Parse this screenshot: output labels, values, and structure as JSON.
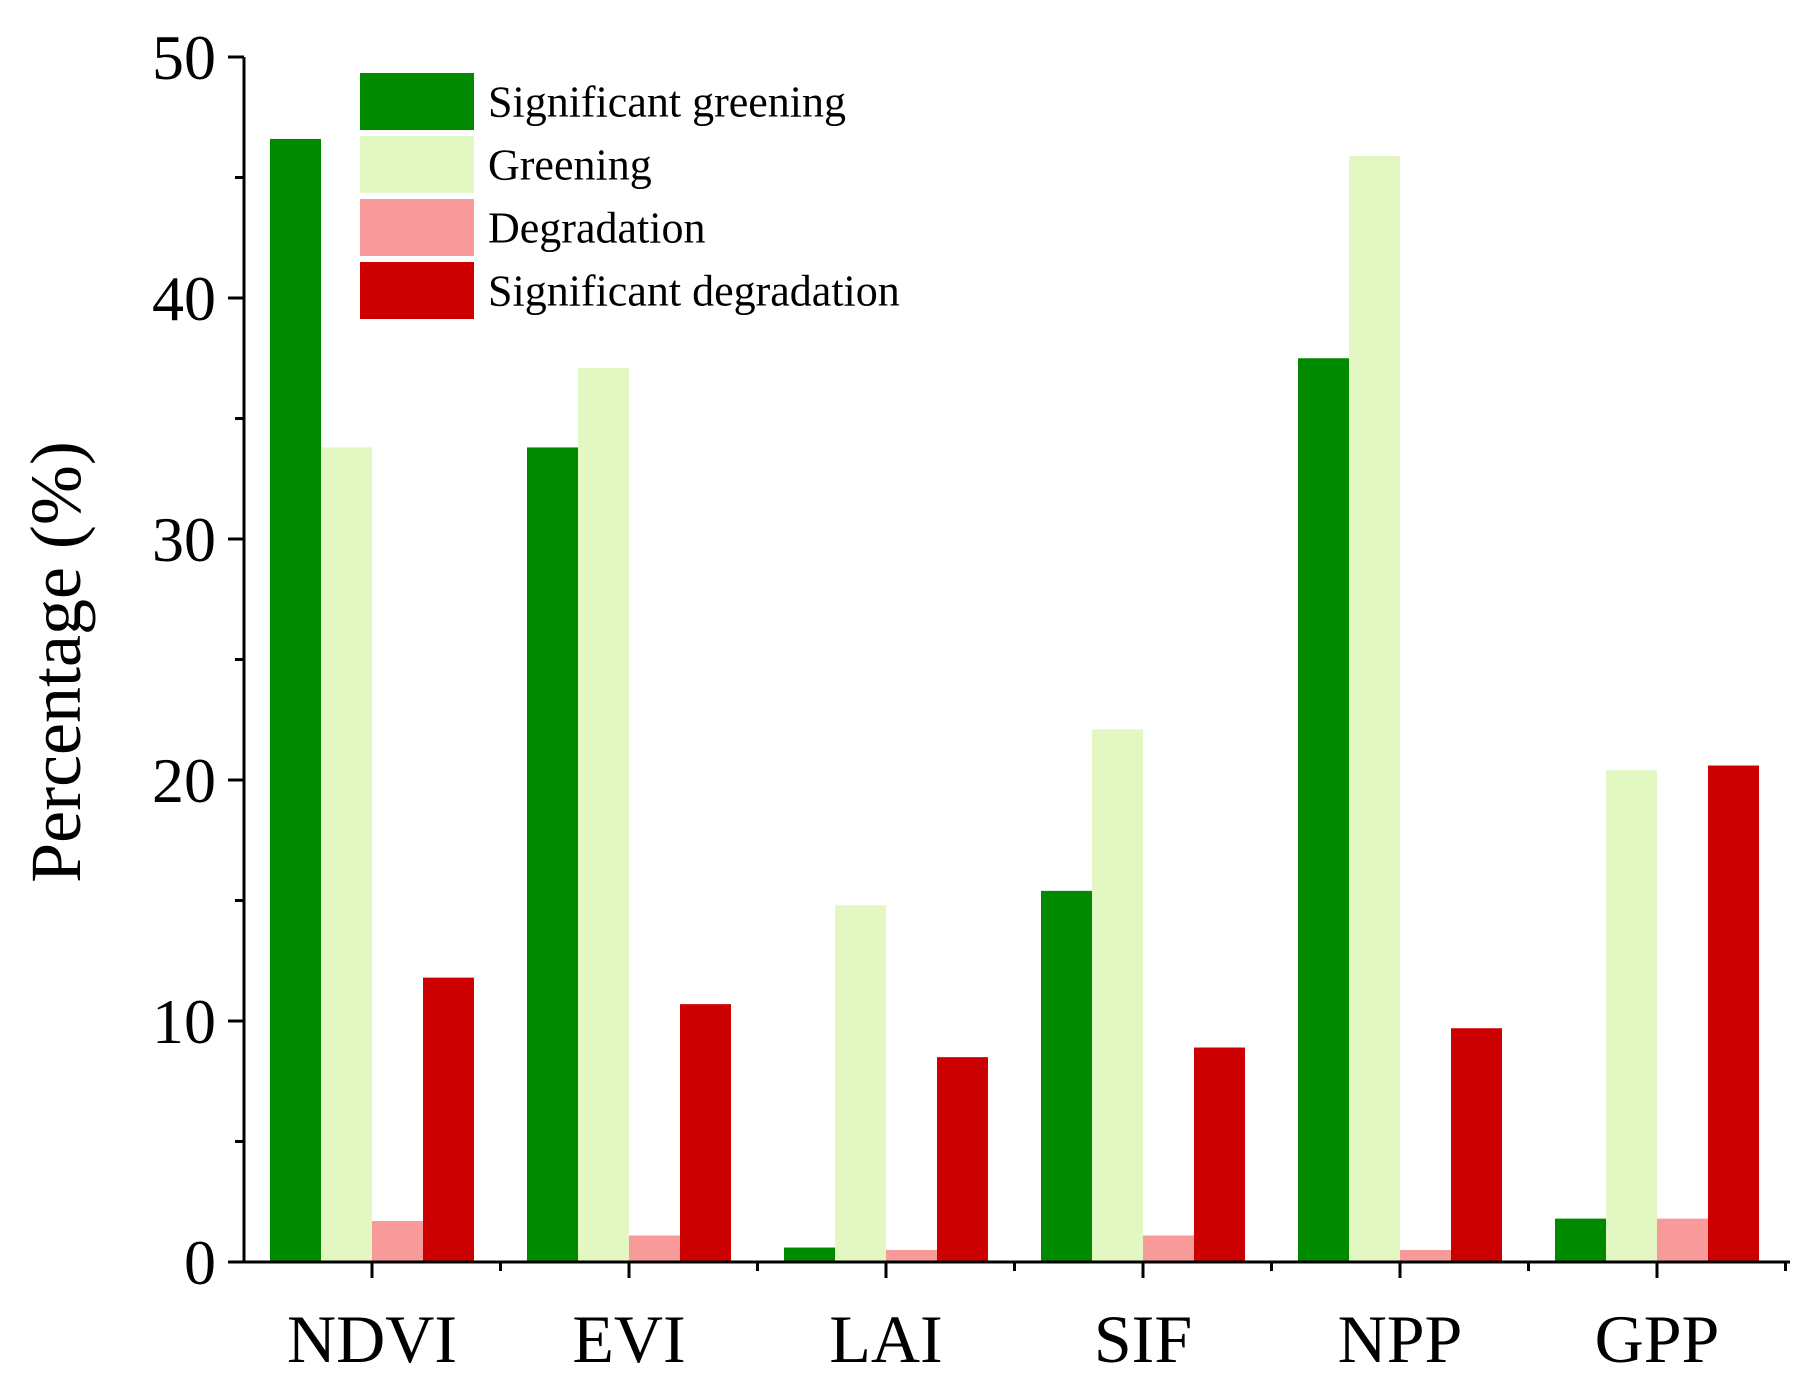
{
  "chart_data": {
    "type": "bar",
    "title": "",
    "xlabel": "",
    "ylabel": "Percentage (%)",
    "ylim": [
      0,
      50
    ],
    "yticks": [
      0,
      10,
      20,
      30,
      40,
      50
    ],
    "grid": false,
    "legend_position": "top-left",
    "categories": [
      "NDVI",
      "EVI",
      "LAI",
      "SIF",
      "NPP",
      "GPP"
    ],
    "series": [
      {
        "name": "Significant greening",
        "color": "#008a00",
        "values": [
          46.6,
          33.8,
          0.6,
          15.4,
          37.5,
          1.8
        ]
      },
      {
        "name": "Greening",
        "color": "#e2f7c2",
        "values": [
          33.8,
          37.1,
          14.8,
          22.1,
          45.9,
          20.4
        ]
      },
      {
        "name": "Degradation",
        "color": "#f99a9a",
        "values": [
          1.7,
          1.1,
          0.5,
          1.1,
          0.5,
          1.8
        ]
      },
      {
        "name": "Significant degradation",
        "color": "#cc0000",
        "values": [
          11.8,
          10.7,
          8.5,
          8.9,
          9.7,
          20.6
        ]
      }
    ]
  }
}
